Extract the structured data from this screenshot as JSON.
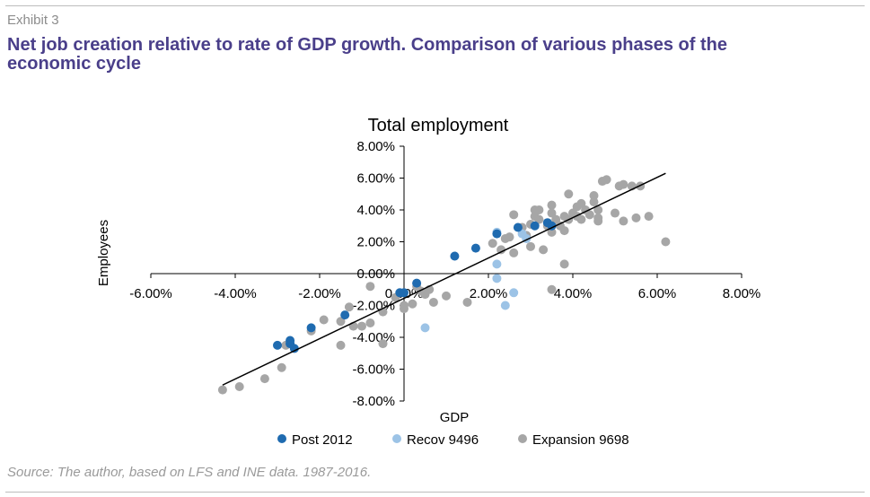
{
  "header": {
    "exhibit": "Exhibit 3",
    "title": "Net job creation relative to rate of GDP growth. Comparison of various phases of the economic cycle"
  },
  "footer": {
    "source": "Source: The author, based on LFS and INE data. 1987-2016."
  },
  "colors": {
    "post2012": "#1f6bb0",
    "recov": "#9cc3e6",
    "expansion": "#a6a6a6",
    "trend": "#000000",
    "title": "#4a3f8a"
  },
  "chart_data": {
    "type": "scatter",
    "title": "Total employment",
    "xlabel": "GDP",
    "ylabel": "Employees",
    "xlim": [
      -0.06,
      0.08
    ],
    "ylim": [
      -0.08,
      0.08
    ],
    "x_ticks": [
      "-6.00%",
      "-4.00%",
      "-2.00%",
      "0.00%",
      "2.00%",
      "4.00%",
      "6.00%",
      "8.00%"
    ],
    "y_ticks": [
      "-8.00%",
      "-6.00%",
      "-4.00%",
      "-2.00%",
      "0.00%",
      "2.00%",
      "4.00%",
      "6.00%",
      "8.00%"
    ],
    "trendline": {
      "from": [
        -0.043,
        -0.07
      ],
      "to": [
        0.062,
        0.063
      ]
    },
    "legend_position": "bottom",
    "series": [
      {
        "name": "Post 2012",
        "points": [
          [
            -0.03,
            -0.045
          ],
          [
            -0.027,
            -0.042
          ],
          [
            -0.027,
            -0.044
          ],
          [
            -0.026,
            -0.047
          ],
          [
            -0.022,
            -0.034
          ],
          [
            -0.014,
            -0.026
          ],
          [
            -0.001,
            -0.012
          ],
          [
            0.0,
            -0.012
          ],
          [
            0.003,
            -0.006
          ],
          [
            0.012,
            0.011
          ],
          [
            0.017,
            0.016
          ],
          [
            0.022,
            0.025
          ],
          [
            0.027,
            0.029
          ],
          [
            0.031,
            0.03
          ],
          [
            0.034,
            0.032
          ],
          [
            0.035,
            0.03
          ]
        ]
      },
      {
        "name": "Recov 9496",
        "points": [
          [
            0.005,
            -0.034
          ],
          [
            0.022,
            0.006
          ],
          [
            0.022,
            0.026
          ],
          [
            0.022,
            -0.003
          ],
          [
            0.024,
            -0.02
          ],
          [
            0.026,
            -0.012
          ],
          [
            0.028,
            0.025
          ],
          [
            0.029,
            0.022
          ]
        ]
      },
      {
        "name": "Expansion 9698",
        "points": [
          [
            -0.043,
            -0.073
          ],
          [
            -0.039,
            -0.071
          ],
          [
            -0.033,
            -0.066
          ],
          [
            -0.029,
            -0.059
          ],
          [
            -0.028,
            -0.045
          ],
          [
            -0.022,
            -0.036
          ],
          [
            -0.019,
            -0.029
          ],
          [
            -0.015,
            -0.045
          ],
          [
            -0.015,
            -0.03
          ],
          [
            -0.013,
            -0.021
          ],
          [
            -0.012,
            -0.033
          ],
          [
            -0.01,
            -0.033
          ],
          [
            -0.008,
            -0.031
          ],
          [
            -0.008,
            -0.008
          ],
          [
            -0.005,
            -0.024
          ],
          [
            -0.005,
            -0.044
          ],
          [
            -0.002,
            -0.015
          ],
          [
            0.0,
            -0.022
          ],
          [
            0.0,
            -0.02
          ],
          [
            0.002,
            -0.019
          ],
          [
            0.003,
            -0.008
          ],
          [
            0.004,
            -0.011
          ],
          [
            0.005,
            -0.013
          ],
          [
            0.006,
            -0.01
          ],
          [
            0.007,
            -0.018
          ],
          [
            0.01,
            -0.014
          ],
          [
            0.015,
            -0.018
          ],
          [
            0.021,
            0.019
          ],
          [
            0.023,
            0.015
          ],
          [
            0.024,
            0.022
          ],
          [
            0.025,
            0.023
          ],
          [
            0.026,
            0.013
          ],
          [
            0.026,
            0.037
          ],
          [
            0.028,
            0.029
          ],
          [
            0.029,
            0.024
          ],
          [
            0.03,
            0.017
          ],
          [
            0.03,
            0.031
          ],
          [
            0.031,
            0.04
          ],
          [
            0.031,
            0.036
          ],
          [
            0.032,
            0.034
          ],
          [
            0.032,
            0.04
          ],
          [
            0.033,
            0.015
          ],
          [
            0.034,
            0.03
          ],
          [
            0.035,
            0.043
          ],
          [
            0.035,
            0.038
          ],
          [
            0.035,
            0.026
          ],
          [
            0.035,
            -0.01
          ],
          [
            0.036,
            0.034
          ],
          [
            0.037,
            0.03
          ],
          [
            0.038,
            0.036
          ],
          [
            0.038,
            0.027
          ],
          [
            0.038,
            0.006
          ],
          [
            0.039,
            0.05
          ],
          [
            0.039,
            0.034
          ],
          [
            0.04,
            0.038
          ],
          [
            0.041,
            0.042
          ],
          [
            0.041,
            0.036
          ],
          [
            0.042,
            0.044
          ],
          [
            0.042,
            0.034
          ],
          [
            0.043,
            0.04
          ],
          [
            0.044,
            0.037
          ],
          [
            0.045,
            0.045
          ],
          [
            0.045,
            0.049
          ],
          [
            0.046,
            0.035
          ],
          [
            0.046,
            0.033
          ],
          [
            0.046,
            0.04
          ],
          [
            0.047,
            0.058
          ],
          [
            0.048,
            0.059
          ],
          [
            0.05,
            0.038
          ],
          [
            0.051,
            0.055
          ],
          [
            0.052,
            0.033
          ],
          [
            0.052,
            0.056
          ],
          [
            0.054,
            0.055
          ],
          [
            0.055,
            0.035
          ],
          [
            0.056,
            0.055
          ],
          [
            0.058,
            0.036
          ],
          [
            0.062,
            0.02
          ]
        ]
      }
    ]
  }
}
